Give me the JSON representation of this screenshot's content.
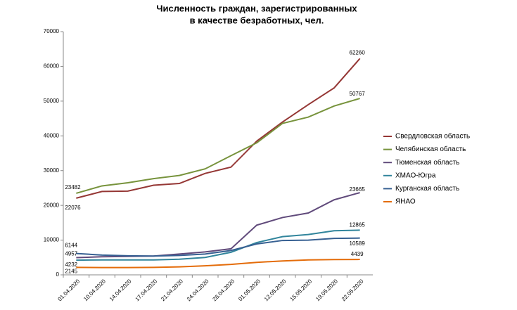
{
  "chart_data": {
    "type": "line",
    "title": [
      "Численность граждан, зарегистрированных",
      "в качестве безработных, чел."
    ],
    "categories": [
      "01.04.2020",
      "10.04.2020",
      "14.04.2020",
      "17.04.2020",
      "21.04.2020",
      "24.04.2020",
      "28.04.2020",
      "01.05.2020",
      "12.05.2020",
      "15.05.2020",
      "19.05.2020",
      "22.05.2020"
    ],
    "series": [
      {
        "name": "Свердловская область",
        "color": "#953735",
        "values": [
          22076,
          24000,
          24100,
          25800,
          26300,
          29200,
          31000,
          38500,
          44000,
          49000,
          53800,
          62260
        ]
      },
      {
        "name": "Челябинская область",
        "color": "#77933c",
        "values": [
          23482,
          25600,
          26500,
          27700,
          28600,
          30500,
          34300,
          38000,
          43600,
          45400,
          48600,
          50767
        ]
      },
      {
        "name": "Тюменская область",
        "color": "#604a7b",
        "values": [
          4957,
          5200,
          5300,
          5400,
          6000,
          6600,
          7500,
          14300,
          16500,
          17800,
          21600,
          23665
        ]
      },
      {
        "name": "ХМАО-Югра",
        "color": "#31859c",
        "values": [
          4232,
          4300,
          4300,
          4300,
          4500,
          5000,
          6500,
          9300,
          11000,
          11600,
          12700,
          12865
        ]
      },
      {
        "name": "Курганская область",
        "color": "#376092",
        "values": [
          6144,
          5700,
          5500,
          5400,
          5600,
          6000,
          7000,
          8900,
          9900,
          10000,
          10500,
          10589
        ]
      },
      {
        "name": "ЯНАО",
        "color": "#e46c0a",
        "values": [
          2145,
          2100,
          2100,
          2150,
          2300,
          2600,
          3000,
          3600,
          4000,
          4300,
          4400,
          4439
        ]
      }
    ],
    "ylim": [
      0,
      70000
    ],
    "yticks": [
      0,
      10000,
      20000,
      30000,
      40000,
      50000,
      60000,
      70000
    ],
    "grid": false,
    "legend": "right"
  }
}
